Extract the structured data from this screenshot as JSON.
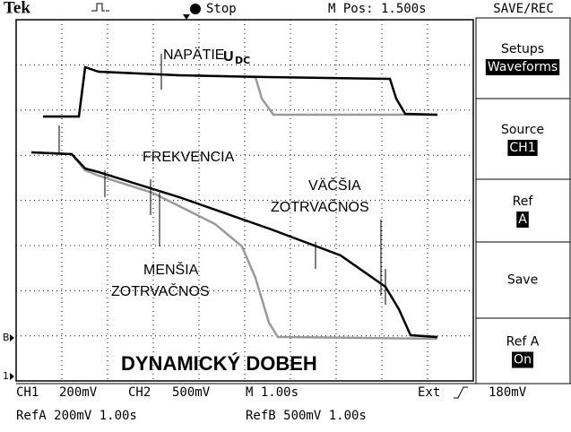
{
  "header": {
    "brand": "Tek",
    "state": "Stop",
    "position": "M Pos: 1.500s",
    "menu_title": "SAVE/REC"
  },
  "annotations": {
    "voltage": "NAPÄTIE",
    "voltage_symbol": "U",
    "voltage_subscript": "DC",
    "frequency": "FREKVENCIA",
    "larger_1": "VÄČŠIA",
    "larger_2": "ZOTRVAČNOS",
    "smaller_1": "MENŠIA",
    "smaller_2": "ZOTRVAČNOS",
    "caption": "DYNAMICKÝ DOBEH"
  },
  "menu": [
    {
      "label": "Setups",
      "value": "Waveforms"
    },
    {
      "label": "Source",
      "value": "CH1"
    },
    {
      "label": "Ref",
      "value": "A"
    },
    {
      "label": "Save"
    },
    {
      "label": "Ref A",
      "value": "On"
    }
  ],
  "markers": {
    "ref_b": "B",
    "ch1": "1"
  },
  "status": {
    "line1": [
      "CH1",
      "200mV",
      "CH2",
      "500mV",
      "M 1.00s",
      "Ext",
      "180mV"
    ],
    "line2": [
      "RefA 200mV 1.00s",
      "RefB 500mV 1.00s"
    ]
  }
}
